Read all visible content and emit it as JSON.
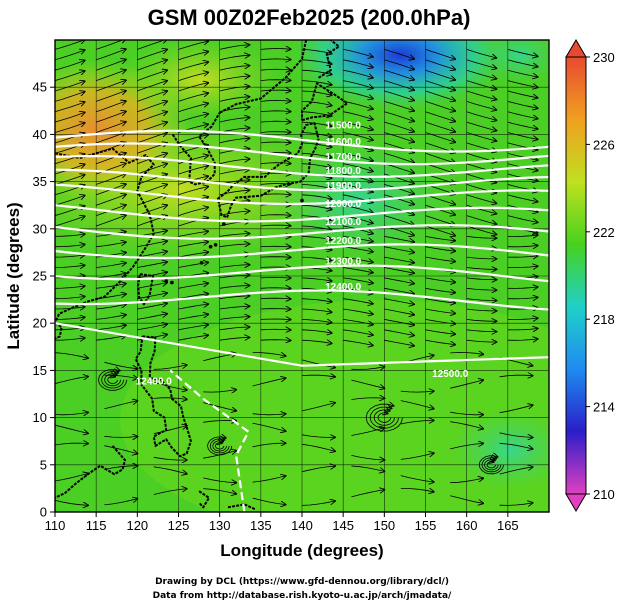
{
  "title": "GSM 00Z02Feb2025 (200.0hPa)",
  "x_axis_title": "Longitude (degrees)",
  "y_axis_title": "Latitude  (degrees)",
  "credits": [
    "Drawing by DCL (https://www.gfd-dennou.org/library/dcl/)",
    "Data from http://database.rish.kyoto-u.ac.jp/arch/jmadata/"
  ],
  "colors": {
    "contour": "#ffffff",
    "coastline": "#000000",
    "streamline": "#000000",
    "background_field": "#4cd21e"
  },
  "chart_data": {
    "type": "heatmap",
    "description_fields": "temperature shading with geopotential height contours and wind streamlines",
    "x_range": [
      110,
      170
    ],
    "y_range": [
      0,
      50
    ],
    "x_ticks": [
      110,
      115,
      120,
      125,
      130,
      135,
      140,
      145,
      150,
      155,
      160,
      165
    ],
    "y_ticks": [
      0,
      5,
      10,
      15,
      20,
      25,
      30,
      35,
      40,
      45
    ],
    "colorbar": {
      "range": [
        210,
        230
      ],
      "ticks": [
        210,
        214,
        218,
        222,
        226,
        230
      ],
      "colors": [
        "#e040c0",
        "#2a1ec8",
        "#1e8cf0",
        "#20d0c8",
        "#46d21e",
        "#c0e020",
        "#f0a020",
        "#e84a30"
      ]
    },
    "contour_labels": [
      "11500.0",
      "11600.0",
      "11700.0",
      "11800.0",
      "11900.0",
      "12000.0",
      "12100.0",
      "12200.0",
      "12300.0",
      "12400.0",
      "12500.0",
      "12400.0"
    ],
    "contour_lines": [
      {
        "level": "11500.0",
        "lat": 39.3
      },
      {
        "level": "11600.0",
        "lat": 37.9
      },
      {
        "level": "11700.0",
        "lat": 36.5
      },
      {
        "level": "11800.0",
        "lat": 35.0
      },
      {
        "level": "11900.0",
        "lat": 33.5
      },
      {
        "level": "12000.0",
        "lat": 31.6
      },
      {
        "level": "12100.0",
        "lat": 29.7
      },
      {
        "level": "12200.0",
        "lat": 27.6
      },
      {
        "level": "12300.0",
        "lat": 25.3
      },
      {
        "level": "12400.0",
        "lat": 22.6
      },
      {
        "level": "12500.0",
        "lat": 15.5
      }
    ],
    "warm_region_lon_lat": [
      110,
      45
    ],
    "cold_region_lon_lat": [
      148,
      48
    ]
  }
}
